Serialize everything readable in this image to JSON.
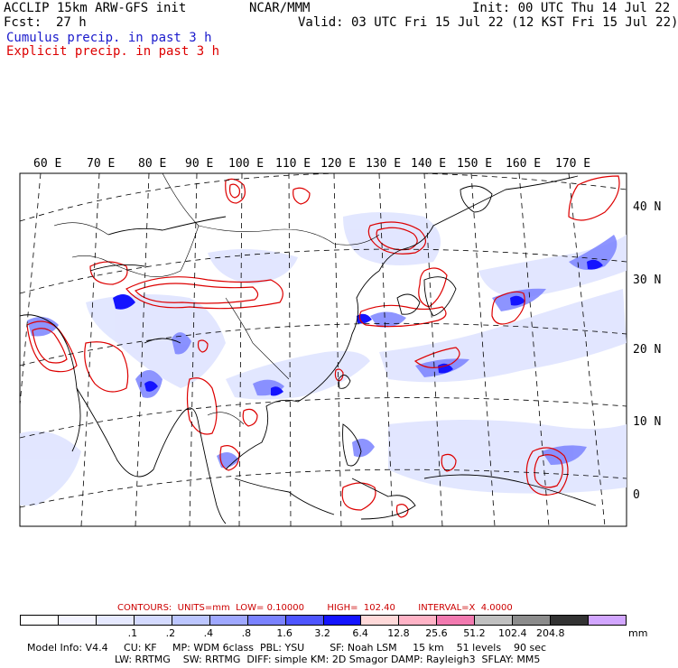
{
  "header": {
    "model_line": "ACCLIP 15km ARW-GFS init",
    "center": "NCAR/MMM",
    "init": "Init: 00 UTC Thu 14 Jul 22",
    "fcst_label": "Fcst:",
    "fcst_value": "27 h",
    "valid": "Valid: 03 UTC Fri 15 Jul 22 (12 KST Fri 15 Jul 22)",
    "field1": "Cumulus precip. in past 3 h",
    "field2": "Explicit precip. in past 3 h",
    "field1_color": "#1a1acc",
    "field2_color": "#dd0000"
  },
  "map": {
    "lon_labels": [
      "60 E",
      "70 E",
      "80 E",
      "90 E",
      "100 E",
      "110 E",
      "120 E",
      "130 E",
      "140 E",
      "150 E",
      "160 E",
      "170 E"
    ],
    "lat_labels": [
      "40 N",
      "30 N",
      "20 N",
      "10 N",
      "0"
    ]
  },
  "contours": {
    "label": "CONTOURS:  UNITS=mm  LOW= 0.10000        HIGH=  102.40        INTERVAL=X  4.0000"
  },
  "colorbar": {
    "colors": [
      "#ffffff",
      "#f4f4ff",
      "#e6e9ff",
      "#d4daff",
      "#bcc6ff",
      "#9fa8ff",
      "#7a82ff",
      "#4e55ff",
      "#1414ff",
      "#ffd9d9",
      "#ffb3c6",
      "#f27ab0",
      "#c0c0c0",
      "#8c8c8c",
      "#333333",
      "#d2a6ff"
    ],
    "labels": [
      ".1",
      ".2",
      ".4",
      ".8",
      "1.6",
      "3.2",
      "6.4",
      "12.8",
      "25.6",
      "51.2",
      "102.4",
      "204.8"
    ],
    "unit": "mm"
  },
  "footer": {
    "line1": "Model Info: V4.4     CU: KF     MP: WDM 6class  PBL: YSU        SF: Noah LSM     15 km    51 levels    90 sec",
    "line2": "LW: RRTMG    SW: RRTMG  DIFF: simple KM: 2D Smagor DAMP: Rayleigh3  SFLAY: MM5"
  }
}
